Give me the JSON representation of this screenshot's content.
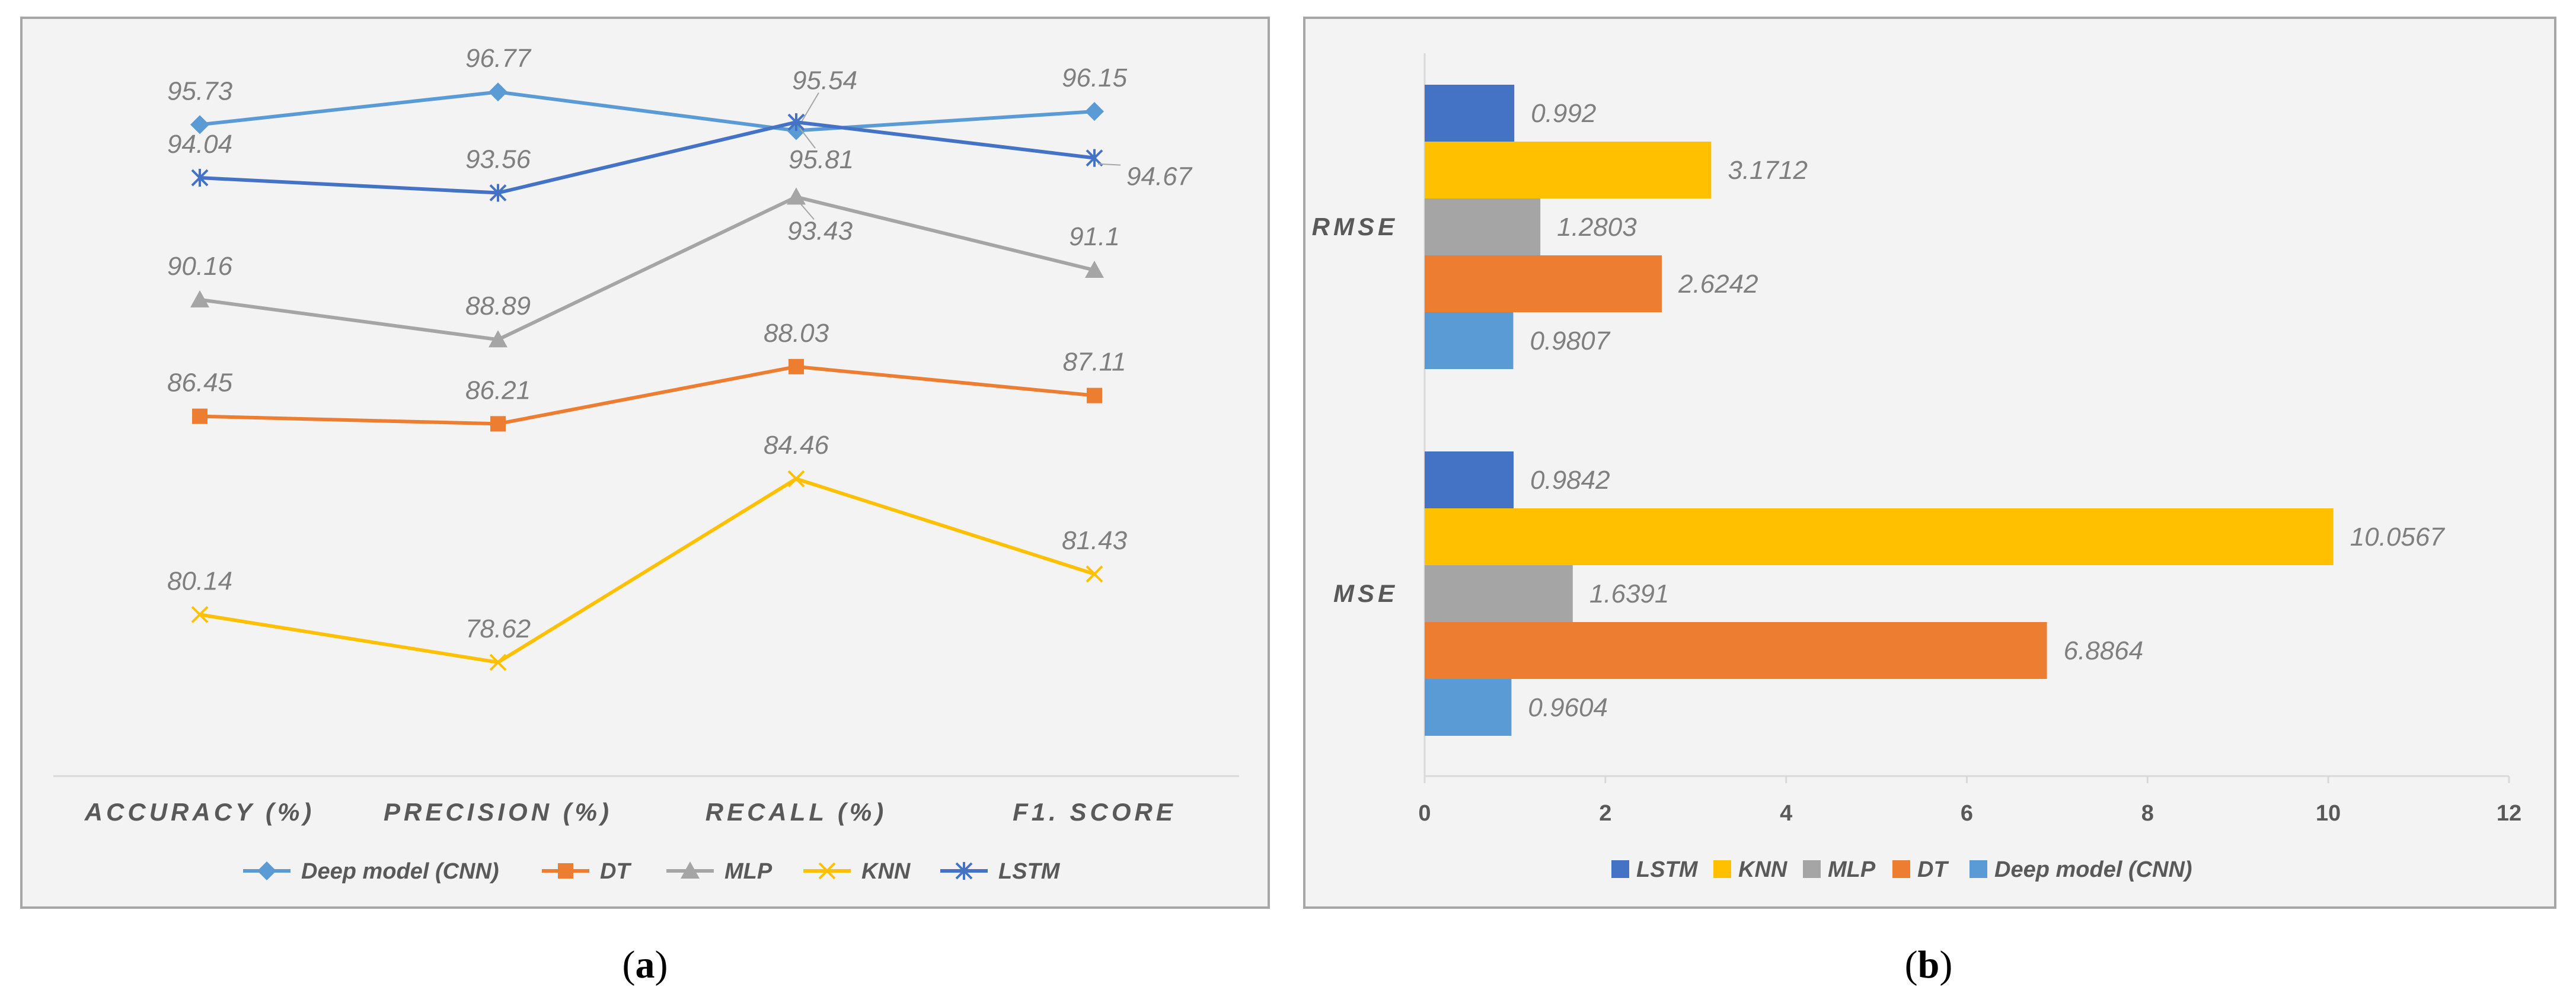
{
  "panels": [
    {
      "label_open": "(",
      "label_letter": "a",
      "label_close": ")"
    },
    {
      "label_open": "(",
      "label_letter": "b",
      "label_close": ")"
    }
  ],
  "chart_data": [
    {
      "type": "line",
      "title": "",
      "xlabel": "",
      "ylabel": "",
      "categories": [
        "ACCURACY (%)",
        "PRECISION (%)",
        "RECALL (%)",
        "F1. SCORE"
      ],
      "ylim": [
        75,
        98
      ],
      "grid": false,
      "legend_position": "bottom",
      "series": [
        {
          "name": "Deep model (CNN)",
          "values": [
            95.73,
            96.77,
            95.54,
            96.15
          ],
          "color": "#5b9bd5",
          "marker": "diamond"
        },
        {
          "name": "DT",
          "values": [
            86.45,
            86.21,
            88.03,
            87.11
          ],
          "color": "#ed7d31",
          "marker": "square"
        },
        {
          "name": "MLP",
          "values": [
            90.16,
            88.89,
            93.43,
            91.1
          ],
          "color": "#a5a5a5",
          "marker": "triangle"
        },
        {
          "name": "KNN",
          "values": [
            80.14,
            78.62,
            84.46,
            81.43
          ],
          "color": "#ffc000",
          "marker": "x"
        },
        {
          "name": "LSTM",
          "values": [
            94.04,
            93.56,
            95.81,
            94.67
          ],
          "color": "#4472c4",
          "marker": "star"
        }
      ]
    },
    {
      "type": "bar",
      "orientation": "horizontal",
      "title": "",
      "xlabel": "",
      "ylabel": "",
      "categories": [
        "RMSE",
        "MSE"
      ],
      "xlim": [
        0,
        12
      ],
      "xticks": [
        0,
        2,
        4,
        6,
        8,
        10,
        12
      ],
      "grid": false,
      "legend_position": "bottom",
      "series": [
        {
          "name": "LSTM",
          "values": [
            0.992,
            0.9842
          ],
          "color": "#4472c4"
        },
        {
          "name": "KNN",
          "values": [
            3.1712,
            10.0567
          ],
          "color": "#ffc000"
        },
        {
          "name": "MLP",
          "values": [
            1.2803,
            1.6391
          ],
          "color": "#a5a5a5"
        },
        {
          "name": "DT",
          "values": [
            2.6242,
            6.8864
          ],
          "color": "#ed7d31"
        },
        {
          "name": "Deep model (CNN)",
          "values": [
            0.9807,
            0.9604
          ],
          "color": "#5b9bd5"
        }
      ]
    }
  ]
}
